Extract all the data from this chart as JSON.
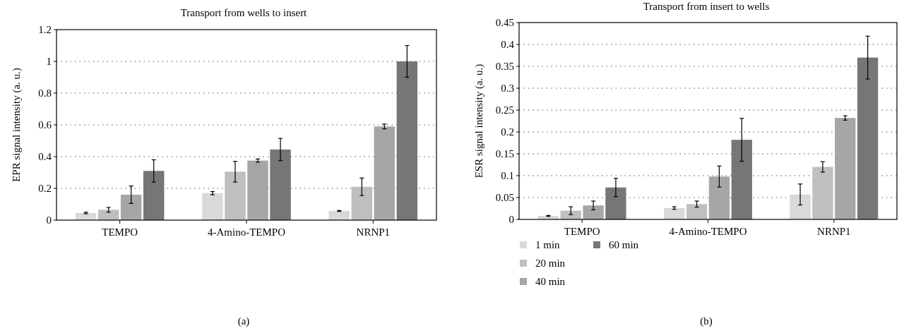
{
  "chart_data": [
    {
      "type": "bar",
      "title": "Transport from wells to insert",
      "ylabel": "EPR signal intensity (a. u.)",
      "categories": [
        "TEMPO",
        "4-Amino-TEMPO",
        "NRNP1"
      ],
      "series": [
        {
          "color": "#d9d9d9",
          "values": [
            0.045,
            0.17,
            0.058
          ],
          "errors": [
            0.005,
            0.01,
            0.003
          ]
        },
        {
          "color": "#bfbfbf",
          "values": [
            0.065,
            0.305,
            0.21
          ],
          "errors": [
            0.015,
            0.065,
            0.055
          ]
        },
        {
          "color": "#a6a6a6",
          "values": [
            0.16,
            0.375,
            0.59
          ],
          "errors": [
            0.055,
            0.01,
            0.015
          ]
        },
        {
          "color": "#767676",
          "values": [
            0.31,
            0.445,
            1.0
          ],
          "errors": [
            0.07,
            0.07,
            0.1
          ]
        }
      ],
      "ylim": [
        0,
        1.2
      ],
      "yticks": [
        0,
        0.2,
        0.4,
        0.6,
        0.8,
        1,
        1.2
      ],
      "grid": "y",
      "legend": false,
      "annotations": [
        "(a)"
      ]
    },
    {
      "type": "bar",
      "title": "Transport from insert to wells",
      "ylabel": "ESR signal intensity (a. u.)",
      "categories": [
        "TEMPO",
        "4-Amino-TEMPO",
        "NRNP1"
      ],
      "series": [
        {
          "name": "1 min",
          "color": "#d9d9d9",
          "values": [
            0.008,
            0.026,
            0.057
          ],
          "errors": [
            0.001,
            0.003,
            0.024
          ]
        },
        {
          "name": "20 min",
          "color": "#bfbfbf",
          "values": [
            0.02,
            0.035,
            0.12
          ],
          "errors": [
            0.009,
            0.007,
            0.012
          ]
        },
        {
          "name": "40 min",
          "color": "#a6a6a6",
          "values": [
            0.032,
            0.098,
            0.232
          ],
          "errors": [
            0.01,
            0.024,
            0.005
          ]
        },
        {
          "name": "60 min",
          "color": "#767676",
          "values": [
            0.073,
            0.182,
            0.37
          ],
          "errors": [
            0.021,
            0.049,
            0.049
          ]
        }
      ],
      "ylim": [
        0,
        0.45
      ],
      "yticks": [
        0,
        0.05,
        0.1,
        0.15,
        0.2,
        0.25,
        0.3,
        0.35,
        0.4,
        0.45
      ],
      "grid": "y",
      "legend": "bottom left",
      "annotations": [
        "(b)"
      ]
    }
  ]
}
